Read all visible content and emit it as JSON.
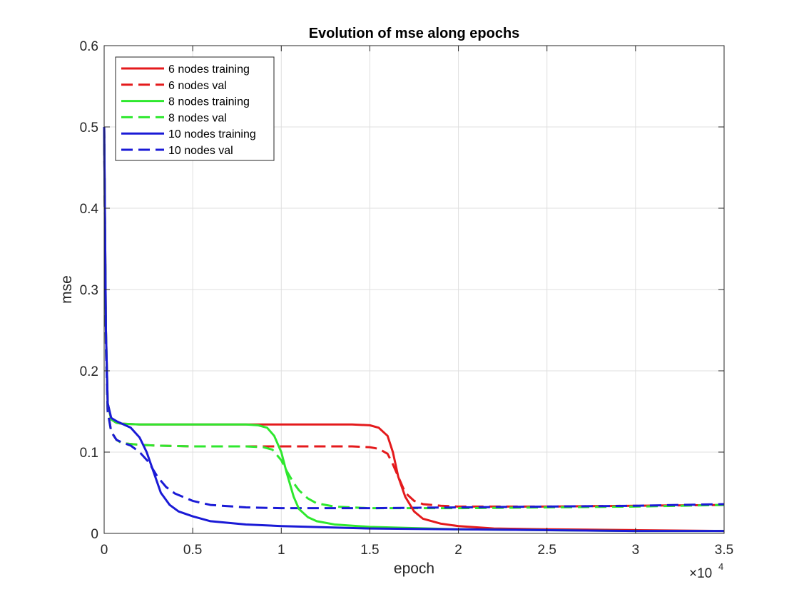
{
  "chart_data": {
    "type": "line",
    "title": "Evolution of mse along epochs",
    "xlabel": "epoch",
    "ylabel": "mse",
    "xlim": [
      0,
      35000
    ],
    "ylim": [
      0,
      0.6
    ],
    "xticks": [
      0,
      5000,
      10000,
      15000,
      20000,
      25000,
      30000,
      35000
    ],
    "xtick_labels": [
      "0",
      "0.5",
      "1",
      "1.5",
      "2",
      "2.5",
      "3",
      "3.5"
    ],
    "yticks": [
      0,
      0.1,
      0.2,
      0.3,
      0.4,
      0.5,
      0.6
    ],
    "ytick_labels": [
      "0",
      "0.1",
      "0.2",
      "0.3",
      "0.4",
      "0.5",
      "0.6"
    ],
    "x_multiplier": {
      "base": "×10",
      "exponent": "4"
    },
    "grid": true,
    "legend_position": "top-left",
    "series": [
      {
        "name": "6 nodes training",
        "color": "#e41a1c",
        "style": "solid",
        "x": [
          0,
          100,
          200,
          400,
          700,
          1000,
          2000,
          5000,
          10000,
          14000,
          15000,
          15500,
          16000,
          16300,
          16600,
          17000,
          17500,
          18000,
          19000,
          20000,
          22000,
          25000,
          30000,
          35000
        ],
        "y": [
          0.5,
          0.25,
          0.16,
          0.14,
          0.136,
          0.135,
          0.134,
          0.134,
          0.134,
          0.134,
          0.133,
          0.13,
          0.12,
          0.1,
          0.07,
          0.045,
          0.027,
          0.018,
          0.012,
          0.009,
          0.006,
          0.005,
          0.004,
          0.003
        ]
      },
      {
        "name": "6 nodes val",
        "color": "#e41a1c",
        "style": "dashed",
        "x": [
          0,
          100,
          200,
          400,
          700,
          1000,
          2000,
          3000,
          5000,
          10000,
          14000,
          15000,
          15500,
          16000,
          16300,
          16700,
          17000,
          17500,
          18000,
          19000,
          20000,
          25000,
          30000,
          35000
        ],
        "y": [
          0.5,
          0.23,
          0.15,
          0.125,
          0.115,
          0.111,
          0.109,
          0.108,
          0.107,
          0.107,
          0.107,
          0.106,
          0.104,
          0.098,
          0.085,
          0.065,
          0.05,
          0.04,
          0.036,
          0.034,
          0.033,
          0.033,
          0.034,
          0.035
        ]
      },
      {
        "name": "8 nodes training",
        "color": "#2ee82e",
        "style": "solid",
        "x": [
          0,
          100,
          200,
          400,
          700,
          1000,
          2000,
          5000,
          8000,
          8700,
          9200,
          9600,
          10000,
          10300,
          10700,
          11000,
          11500,
          12000,
          13000,
          15000,
          20000,
          25000,
          30000,
          35000
        ],
        "y": [
          0.5,
          0.25,
          0.16,
          0.14,
          0.136,
          0.135,
          0.134,
          0.134,
          0.134,
          0.133,
          0.13,
          0.12,
          0.1,
          0.075,
          0.045,
          0.03,
          0.02,
          0.015,
          0.011,
          0.008,
          0.005,
          0.004,
          0.003,
          0.003
        ]
      },
      {
        "name": "8 nodes val",
        "color": "#2ee82e",
        "style": "dashed",
        "x": [
          0,
          100,
          200,
          400,
          700,
          1000,
          2000,
          3000,
          5000,
          8000,
          9000,
          9500,
          10000,
          10300,
          10700,
          11000,
          11500,
          12000,
          13000,
          14000,
          15000,
          20000,
          25000,
          30000,
          35000
        ],
        "y": [
          0.5,
          0.23,
          0.15,
          0.125,
          0.115,
          0.111,
          0.109,
          0.108,
          0.107,
          0.107,
          0.106,
          0.103,
          0.09,
          0.077,
          0.062,
          0.053,
          0.043,
          0.037,
          0.033,
          0.032,
          0.031,
          0.031,
          0.032,
          0.033,
          0.035
        ]
      },
      {
        "name": "10 nodes training",
        "color": "#1a1ad6",
        "style": "solid",
        "x": [
          0,
          100,
          200,
          400,
          700,
          1000,
          1500,
          2000,
          2400,
          2800,
          3200,
          3700,
          4200,
          5000,
          6000,
          8000,
          10000,
          15000,
          20000,
          25000,
          30000,
          35000
        ],
        "y": [
          0.5,
          0.25,
          0.16,
          0.142,
          0.138,
          0.135,
          0.13,
          0.118,
          0.1,
          0.075,
          0.05,
          0.035,
          0.027,
          0.021,
          0.015,
          0.011,
          0.009,
          0.006,
          0.005,
          0.004,
          0.003,
          0.003
        ]
      },
      {
        "name": "10 nodes val",
        "color": "#1a1ad6",
        "style": "dashed",
        "x": [
          0,
          100,
          200,
          400,
          700,
          1000,
          1500,
          2000,
          2500,
          3000,
          3500,
          4000,
          5000,
          6000,
          8000,
          10000,
          15000,
          20000,
          25000,
          30000,
          35000
        ],
        "y": [
          0.5,
          0.23,
          0.15,
          0.125,
          0.115,
          0.112,
          0.108,
          0.1,
          0.088,
          0.07,
          0.057,
          0.049,
          0.04,
          0.035,
          0.032,
          0.031,
          0.031,
          0.032,
          0.033,
          0.034,
          0.036
        ]
      }
    ]
  }
}
